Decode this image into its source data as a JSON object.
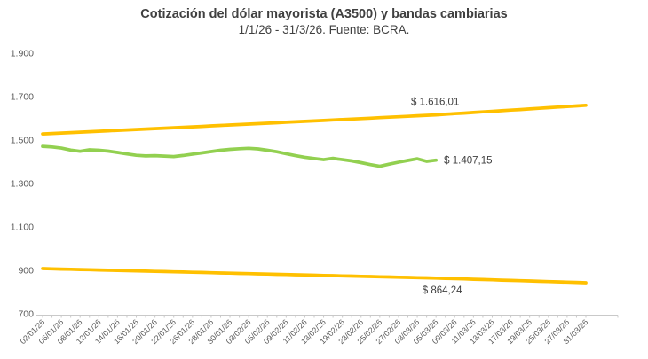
{
  "title": "Cotización del dólar mayorista (A3500) y bandas cambiarias",
  "subtitle": "1/1/26 - 31/3/26. Fuente: BCRA.",
  "colors": {
    "band": "#FFC000",
    "rate": "#92D050",
    "title_text": "#404040",
    "axis_text": "#595959",
    "annotation_text": "#404040",
    "axis_line": "#C9C9C9"
  },
  "chart_data": {
    "type": "line",
    "title": "Cotización del dólar mayorista (A3500) y bandas cambiarias",
    "subtitle": "1/1/26 - 31/3/26. Fuente: BCRA.",
    "xlabel": "",
    "ylabel": "",
    "ylim": [
      700,
      1900
    ],
    "grid": false,
    "legend": false,
    "x_label_every": 2,
    "y_ticks": [
      {
        "value": 1900,
        "label": "1.900"
      },
      {
        "value": 1700,
        "label": "1.700"
      },
      {
        "value": 1500,
        "label": "1.500"
      },
      {
        "value": 1300,
        "label": "1.300"
      },
      {
        "value": 1100,
        "label": "1.100"
      },
      {
        "value": 900,
        "label": "900"
      },
      {
        "value": 700,
        "label": "700"
      }
    ],
    "x": [
      "02/01/26",
      "05/01/26",
      "06/01/26",
      "07/01/26",
      "08/01/26",
      "09/01/26",
      "12/01/26",
      "13/01/26",
      "14/01/26",
      "15/01/26",
      "16/01/26",
      "19/01/26",
      "20/01/26",
      "21/01/26",
      "22/01/26",
      "23/01/26",
      "26/01/26",
      "27/01/26",
      "28/01/26",
      "29/01/26",
      "30/01/26",
      "02/02/26",
      "03/02/26",
      "04/02/26",
      "05/02/26",
      "06/02/26",
      "09/02/26",
      "10/02/26",
      "11/02/26",
      "12/02/26",
      "13/02/26",
      "18/02/26",
      "19/02/26",
      "20/02/26",
      "23/02/26",
      "24/02/26",
      "25/02/26",
      "26/02/26",
      "27/02/26",
      "02/03/26",
      "03/03/26",
      "04/03/26",
      "05/03/26",
      "06/03/26",
      "09/03/26",
      "10/03/26",
      "11/03/26",
      "12/03/26",
      "13/03/26",
      "16/03/26",
      "17/03/26",
      "18/03/26",
      "19/03/26",
      "20/03/26",
      "25/03/26",
      "26/03/26",
      "27/03/26",
      "30/03/26",
      "31/03/26"
    ],
    "series": [
      {
        "name": "banda_superior",
        "color": "#FFC000",
        "values": [
          1528,
          1530.04,
          1532.08,
          1534.12,
          1536.17,
          1538.22,
          1540.27,
          1542.33,
          1544.39,
          1546.45,
          1548.51,
          1550.58,
          1552.65,
          1554.72,
          1556.79,
          1558.87,
          1560.95,
          1563.03,
          1565.12,
          1567.21,
          1569.3,
          1571.39,
          1573.49,
          1575.59,
          1577.69,
          1579.79,
          1581.9,
          1584.01,
          1586.13,
          1588.24,
          1590.36,
          1592.48,
          1594.61,
          1596.74,
          1598.87,
          1601,
          1603.14,
          1605.27,
          1607.42,
          1609.56,
          1611.71,
          1613.86,
          1616.01,
          1618.72,
          1621.44,
          1624.16,
          1626.89,
          1629.62,
          1632.36,
          1635.1,
          1637.84,
          1640.59,
          1643.35,
          1646.11,
          1648.87,
          1651.64,
          1654.41,
          1657.19,
          1660
        ]
      },
      {
        "name": "dolar_mayorista_A3500",
        "color": "#92D050",
        "values": [
          1471,
          1468,
          1463,
          1454,
          1448,
          1455,
          1453,
          1449,
          1443,
          1436,
          1430,
          1427,
          1428,
          1426,
          1424,
          1429,
          1435,
          1441,
          1447,
          1453,
          1457,
          1460,
          1462,
          1459,
          1453,
          1446,
          1437,
          1428,
          1421,
          1415,
          1410,
          1416,
          1410,
          1404,
          1396,
          1387,
          1379,
          1389,
          1398,
          1406,
          1414,
          1402,
          1407.15
        ]
      },
      {
        "name": "banda_inferior",
        "color": "#FFC000",
        "values": [
          908,
          906.93,
          905.87,
          904.8,
          903.74,
          902.68,
          901.62,
          900.56,
          899.5,
          898.44,
          897.39,
          896.33,
          895.28,
          894.23,
          893.18,
          892.13,
          891.08,
          890.03,
          888.98,
          887.94,
          886.9,
          885.85,
          884.81,
          883.77,
          882.73,
          881.7,
          880.66,
          879.62,
          878.59,
          877.56,
          876.53,
          875.5,
          874.47,
          873.44,
          872.41,
          871.39,
          870.36,
          869.34,
          868.32,
          867.3,
          866.28,
          865.26,
          864.24,
          862.9,
          861.56,
          860.22,
          858.88,
          857.55,
          856.21,
          854.88,
          853.55,
          852.23,
          850.9,
          849.58,
          848.26,
          846.94,
          845.62,
          844.31,
          843
        ]
      }
    ],
    "annotations": [
      {
        "series": 0,
        "index": 42,
        "label": "$ 1.616,01",
        "placement": "above"
      },
      {
        "series": 1,
        "index": 42,
        "label": "$ 1.407,15",
        "placement": "right"
      },
      {
        "series": 2,
        "index": 42,
        "label": "$ 864,24",
        "placement": "below"
      }
    ]
  }
}
